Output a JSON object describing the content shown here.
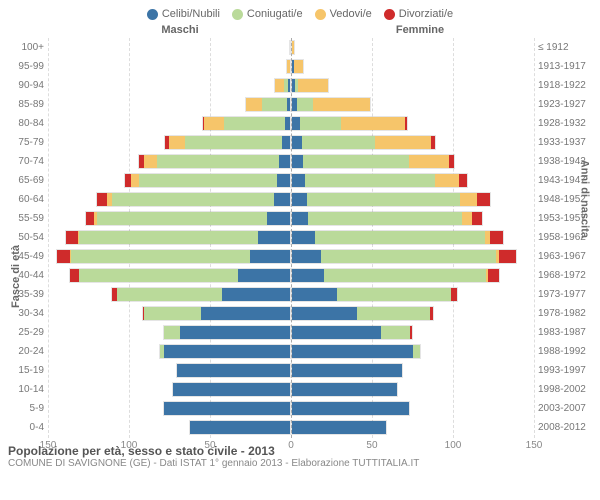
{
  "legend": {
    "items": [
      {
        "label": "Celibi/Nubili",
        "color": "#3c74a6"
      },
      {
        "label": "Coniugati/e",
        "color": "#bada9a"
      },
      {
        "label": "Vedovi/e",
        "color": "#f6c56a"
      },
      {
        "label": "Divorziati/e",
        "color": "#cf2b2b"
      }
    ]
  },
  "headers": {
    "m": "Maschi",
    "f": "Femmine"
  },
  "axes": {
    "y_left_title": "Fasce di età",
    "y_right_title": "Anni di nascita",
    "x_max": 150,
    "x_ticks": [
      150,
      100,
      50,
      0,
      50,
      100,
      150
    ],
    "grid_positions_frac_from_center": [
      0.3333,
      0.6667,
      1.0
    ]
  },
  "colors": {
    "single": "#3c74a6",
    "married": "#bada9a",
    "widowed": "#f6c56a",
    "divorced": "#cf2b2b",
    "grid": "#dddddd",
    "center": "#aaaaaa",
    "bg": "#ffffff"
  },
  "bars": [
    {
      "age": "100+",
      "birth": "≤ 1912",
      "m": {
        "s": 0,
        "c": 0,
        "w": 0,
        "d": 0
      },
      "f": {
        "s": 0,
        "c": 0,
        "w": 1,
        "d": 0
      }
    },
    {
      "age": "95-99",
      "birth": "1913-1917",
      "m": {
        "s": 0,
        "c": 0,
        "w": 2,
        "d": 0
      },
      "f": {
        "s": 1,
        "c": 0,
        "w": 6,
        "d": 0
      }
    },
    {
      "age": "90-94",
      "birth": "1918-1922",
      "m": {
        "s": 1,
        "c": 3,
        "w": 5,
        "d": 0
      },
      "f": {
        "s": 2,
        "c": 2,
        "w": 18,
        "d": 0
      }
    },
    {
      "age": "85-89",
      "birth": "1923-1927",
      "m": {
        "s": 2,
        "c": 15,
        "w": 10,
        "d": 0
      },
      "f": {
        "s": 3,
        "c": 10,
        "w": 35,
        "d": 0
      }
    },
    {
      "age": "80-84",
      "birth": "1928-1932",
      "m": {
        "s": 3,
        "c": 38,
        "w": 12,
        "d": 1
      },
      "f": {
        "s": 5,
        "c": 25,
        "w": 40,
        "d": 1
      }
    },
    {
      "age": "75-79",
      "birth": "1933-1937",
      "m": {
        "s": 5,
        "c": 60,
        "w": 10,
        "d": 2
      },
      "f": {
        "s": 6,
        "c": 45,
        "w": 35,
        "d": 2
      }
    },
    {
      "age": "70-74",
      "birth": "1938-1942",
      "m": {
        "s": 7,
        "c": 75,
        "w": 8,
        "d": 3
      },
      "f": {
        "s": 7,
        "c": 65,
        "w": 25,
        "d": 3
      }
    },
    {
      "age": "65-69",
      "birth": "1943-1947",
      "m": {
        "s": 8,
        "c": 85,
        "w": 5,
        "d": 4
      },
      "f": {
        "s": 8,
        "c": 80,
        "w": 15,
        "d": 5
      }
    },
    {
      "age": "60-64",
      "birth": "1948-1952",
      "m": {
        "s": 10,
        "c": 100,
        "w": 3,
        "d": 6
      },
      "f": {
        "s": 9,
        "c": 95,
        "w": 10,
        "d": 8
      }
    },
    {
      "age": "55-59",
      "birth": "1953-1957",
      "m": {
        "s": 14,
        "c": 105,
        "w": 2,
        "d": 5
      },
      "f": {
        "s": 10,
        "c": 95,
        "w": 6,
        "d": 6
      }
    },
    {
      "age": "50-54",
      "birth": "1958-1962",
      "m": {
        "s": 20,
        "c": 110,
        "w": 1,
        "d": 7
      },
      "f": {
        "s": 14,
        "c": 105,
        "w": 3,
        "d": 8
      }
    },
    {
      "age": "45-49",
      "birth": "1963-1967",
      "m": {
        "s": 25,
        "c": 110,
        "w": 1,
        "d": 8
      },
      "f": {
        "s": 18,
        "c": 108,
        "w": 2,
        "d": 10
      }
    },
    {
      "age": "40-44",
      "birth": "1968-1972",
      "m": {
        "s": 32,
        "c": 98,
        "w": 0,
        "d": 6
      },
      "f": {
        "s": 20,
        "c": 100,
        "w": 1,
        "d": 7
      }
    },
    {
      "age": "35-39",
      "birth": "1973-1977",
      "m": {
        "s": 42,
        "c": 65,
        "w": 0,
        "d": 3
      },
      "f": {
        "s": 28,
        "c": 70,
        "w": 0,
        "d": 4
      }
    },
    {
      "age": "30-34",
      "birth": "1978-1982",
      "m": {
        "s": 55,
        "c": 35,
        "w": 0,
        "d": 1
      },
      "f": {
        "s": 40,
        "c": 45,
        "w": 0,
        "d": 2
      }
    },
    {
      "age": "25-29",
      "birth": "1983-1987",
      "m": {
        "s": 68,
        "c": 10,
        "w": 0,
        "d": 0
      },
      "f": {
        "s": 55,
        "c": 18,
        "w": 0,
        "d": 1
      }
    },
    {
      "age": "20-24",
      "birth": "1988-1992",
      "m": {
        "s": 78,
        "c": 2,
        "w": 0,
        "d": 0
      },
      "f": {
        "s": 75,
        "c": 4,
        "w": 0,
        "d": 0
      }
    },
    {
      "age": "15-19",
      "birth": "1993-1997",
      "m": {
        "s": 70,
        "c": 0,
        "w": 0,
        "d": 0
      },
      "f": {
        "s": 68,
        "c": 0,
        "w": 0,
        "d": 0
      }
    },
    {
      "age": "10-14",
      "birth": "1998-2002",
      "m": {
        "s": 72,
        "c": 0,
        "w": 0,
        "d": 0
      },
      "f": {
        "s": 65,
        "c": 0,
        "w": 0,
        "d": 0
      }
    },
    {
      "age": "5-9",
      "birth": "2003-2007",
      "m": {
        "s": 78,
        "c": 0,
        "w": 0,
        "d": 0
      },
      "f": {
        "s": 72,
        "c": 0,
        "w": 0,
        "d": 0
      }
    },
    {
      "age": "0-4",
      "birth": "2008-2012",
      "m": {
        "s": 62,
        "c": 0,
        "w": 0,
        "d": 0
      },
      "f": {
        "s": 58,
        "c": 0,
        "w": 0,
        "d": 0
      }
    }
  ],
  "footer": {
    "title": "Popolazione per età, sesso e stato civile - 2013",
    "sub": "COMUNE DI SAVIGNONE (GE) - Dati ISTAT 1° gennaio 2013 - Elaborazione TUTTITALIA.IT"
  }
}
